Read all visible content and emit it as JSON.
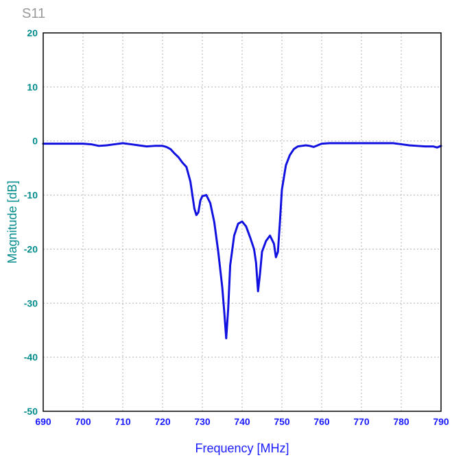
{
  "chart_data": {
    "type": "line",
    "title": "S11",
    "xlabel": "Frequency [MHz]",
    "ylabel": "Magnitude [dB]",
    "xlim": [
      690,
      790
    ],
    "ylim": [
      -50,
      20
    ],
    "xticks": [
      690,
      700,
      710,
      720,
      730,
      740,
      750,
      760,
      770,
      780,
      790
    ],
    "yticks": [
      20,
      10,
      0,
      -10,
      -20,
      -30,
      -40,
      -50
    ],
    "xtick_labels": [
      "690",
      "700",
      "710",
      "720",
      "730",
      "740",
      "750",
      "760",
      "770",
      "780",
      "790"
    ],
    "ytick_labels": [
      "20",
      "10",
      "0",
      "-10",
      "-20",
      "-30",
      "-40",
      "-50"
    ],
    "grid": true,
    "colors": {
      "series": "#1010e0",
      "axis_text": "#008b8b",
      "tick_text": "#008b8b",
      "title": "#999999",
      "xlabel": "#1a1aff",
      "grid": "#b0b0b0",
      "frame": "#000000"
    },
    "series": [
      {
        "x": [
          690,
          692,
          694,
          696,
          698,
          700,
          702,
          704,
          706,
          708,
          710,
          712,
          714,
          716,
          718,
          720,
          721,
          722,
          723,
          724,
          725,
          726,
          727,
          728,
          728.5,
          729,
          729.5,
          730,
          731,
          732,
          733,
          734,
          735,
          735.5,
          736,
          736.5,
          737,
          738,
          739,
          740,
          741,
          742,
          743,
          743.5,
          744,
          744.5,
          745,
          746,
          747,
          748,
          748.5,
          749,
          749.5,
          750,
          751,
          752,
          753,
          754,
          755,
          756,
          757,
          758,
          759,
          760,
          762,
          764,
          766,
          768,
          770,
          772,
          774,
          776,
          778,
          780,
          782,
          784,
          786,
          788,
          789,
          790
        ],
        "y": [
          -0.5,
          -0.5,
          -0.5,
          -0.5,
          -0.5,
          -0.5,
          -0.6,
          -0.9,
          -0.8,
          -0.6,
          -0.4,
          -0.6,
          -0.8,
          -1.0,
          -0.9,
          -0.9,
          -1.1,
          -1.5,
          -2.3,
          -3.0,
          -4.0,
          -4.8,
          -7.5,
          -12.5,
          -13.7,
          -13.2,
          -11.0,
          -10.2,
          -10.0,
          -11.5,
          -15.0,
          -20.5,
          -27.0,
          -31.5,
          -36.5,
          -31.0,
          -23.0,
          -17.5,
          -15.3,
          -14.9,
          -15.8,
          -17.8,
          -20.0,
          -22.5,
          -27.8,
          -24.5,
          -20.5,
          -18.5,
          -17.5,
          -19.0,
          -21.5,
          -20.5,
          -15.0,
          -9.0,
          -4.5,
          -2.6,
          -1.5,
          -1.0,
          -0.9,
          -0.8,
          -0.9,
          -1.1,
          -0.8,
          -0.5,
          -0.4,
          -0.4,
          -0.4,
          -0.4,
          -0.4,
          -0.4,
          -0.4,
          -0.4,
          -0.4,
          -0.6,
          -0.8,
          -0.9,
          -1.0,
          -1.0,
          -1.2,
          -0.9
        ]
      }
    ]
  }
}
